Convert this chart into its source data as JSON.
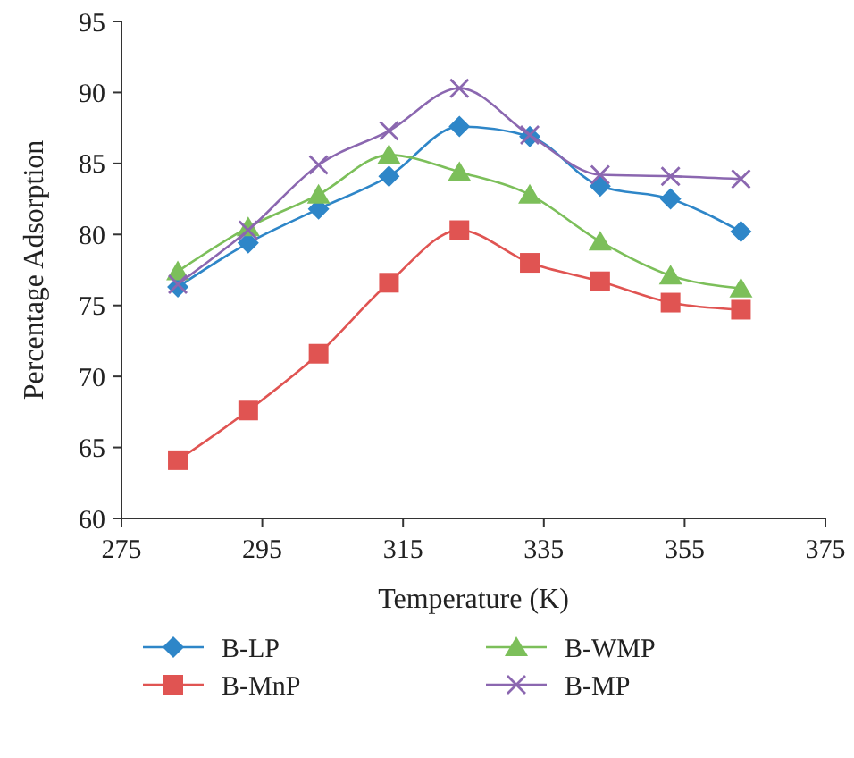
{
  "chart_data": {
    "type": "line",
    "xlabel": "Temperature (K)",
    "ylabel": "Percentage Adsorption",
    "x": [
      283,
      293,
      303,
      313,
      323,
      333,
      343,
      353,
      363
    ],
    "xlim": [
      275,
      375
    ],
    "xticks": [
      275,
      295,
      315,
      335,
      355,
      375
    ],
    "ylim": [
      60,
      95
    ],
    "yticks": [
      60,
      65,
      70,
      75,
      80,
      85,
      90,
      95
    ],
    "grid": false,
    "legend": "bottom",
    "series": [
      {
        "name": "B-LP",
        "color": "#2e86c8",
        "marker": "diamond",
        "values": [
          76.3,
          79.4,
          81.8,
          84.1,
          87.6,
          86.9,
          83.4,
          82.5,
          80.2
        ]
      },
      {
        "name": "B-WMP",
        "color": "#7cbf5a",
        "marker": "triangle",
        "values": [
          77.4,
          80.5,
          82.8,
          85.6,
          84.4,
          82.8,
          79.5,
          77.1,
          76.2
        ]
      },
      {
        "name": "B-MnP",
        "color": "#e05452",
        "marker": "square",
        "values": [
          64.1,
          67.6,
          71.6,
          76.6,
          80.3,
          78.0,
          76.7,
          75.2,
          74.7
        ]
      },
      {
        "name": "B-MP",
        "color": "#8b67b0",
        "marker": "cross",
        "values": [
          76.5,
          80.3,
          84.9,
          87.3,
          90.3,
          87.0,
          84.2,
          84.1,
          83.9
        ]
      }
    ]
  }
}
